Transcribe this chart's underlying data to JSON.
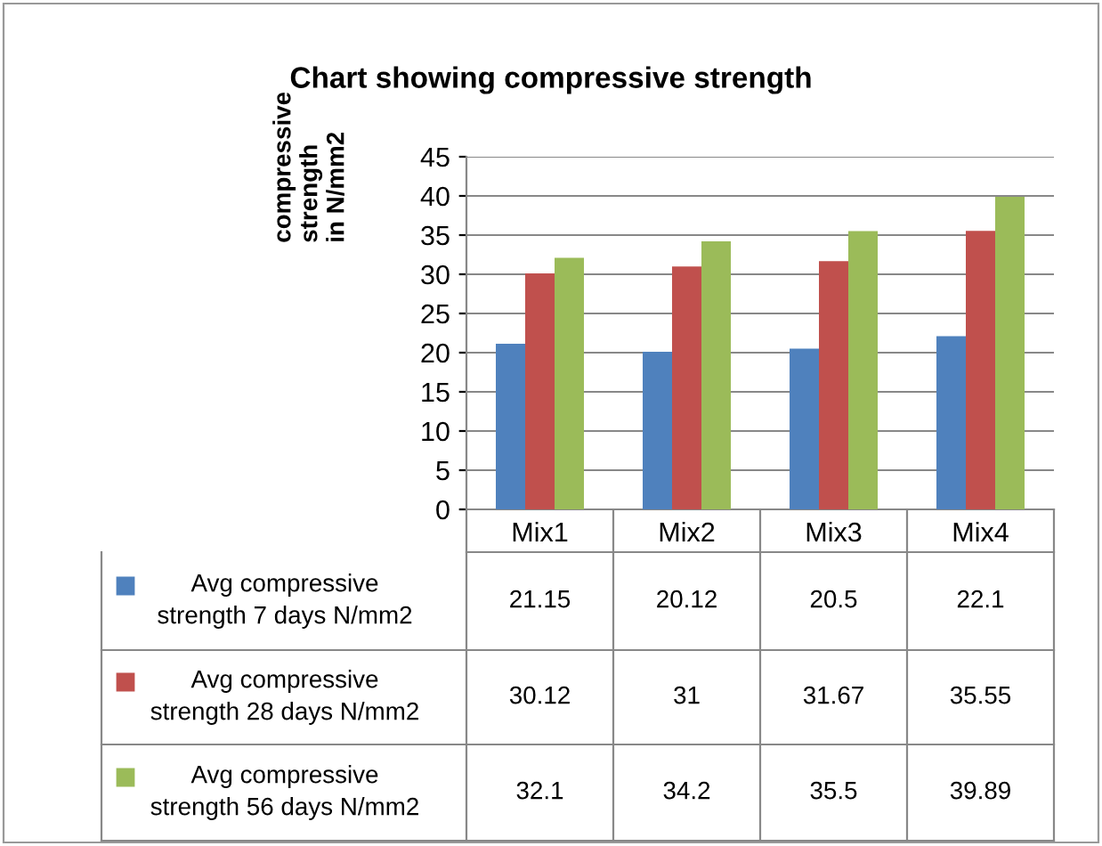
{
  "chart_data": {
    "type": "bar",
    "title": "Chart showing compressive strength",
    "ylabel": "compressive\nstrength\nin N/mm2",
    "categories": [
      "Mix1",
      "Mix2",
      "Mix3",
      "Mix4"
    ],
    "series": [
      {
        "name": "Avg compressive strength 7 days N/mm2",
        "color": "#4f81bd",
        "values": [
          21.15,
          20.12,
          20.5,
          22.1
        ]
      },
      {
        "name": "Avg compressive strength 28 days N/mm2",
        "color": "#c0504d",
        "values": [
          30.12,
          31,
          31.67,
          35.55
        ]
      },
      {
        "name": "Avg compressive strength 56 days N/mm2",
        "color": "#9bbb59",
        "values": [
          32.1,
          34.2,
          35.5,
          39.89
        ]
      }
    ],
    "ylim": [
      0,
      45
    ],
    "yticks": [
      0,
      5,
      10,
      15,
      20,
      25,
      30,
      35,
      40,
      45
    ],
    "grid": "y",
    "legend": "bottom",
    "data_labels": true
  }
}
